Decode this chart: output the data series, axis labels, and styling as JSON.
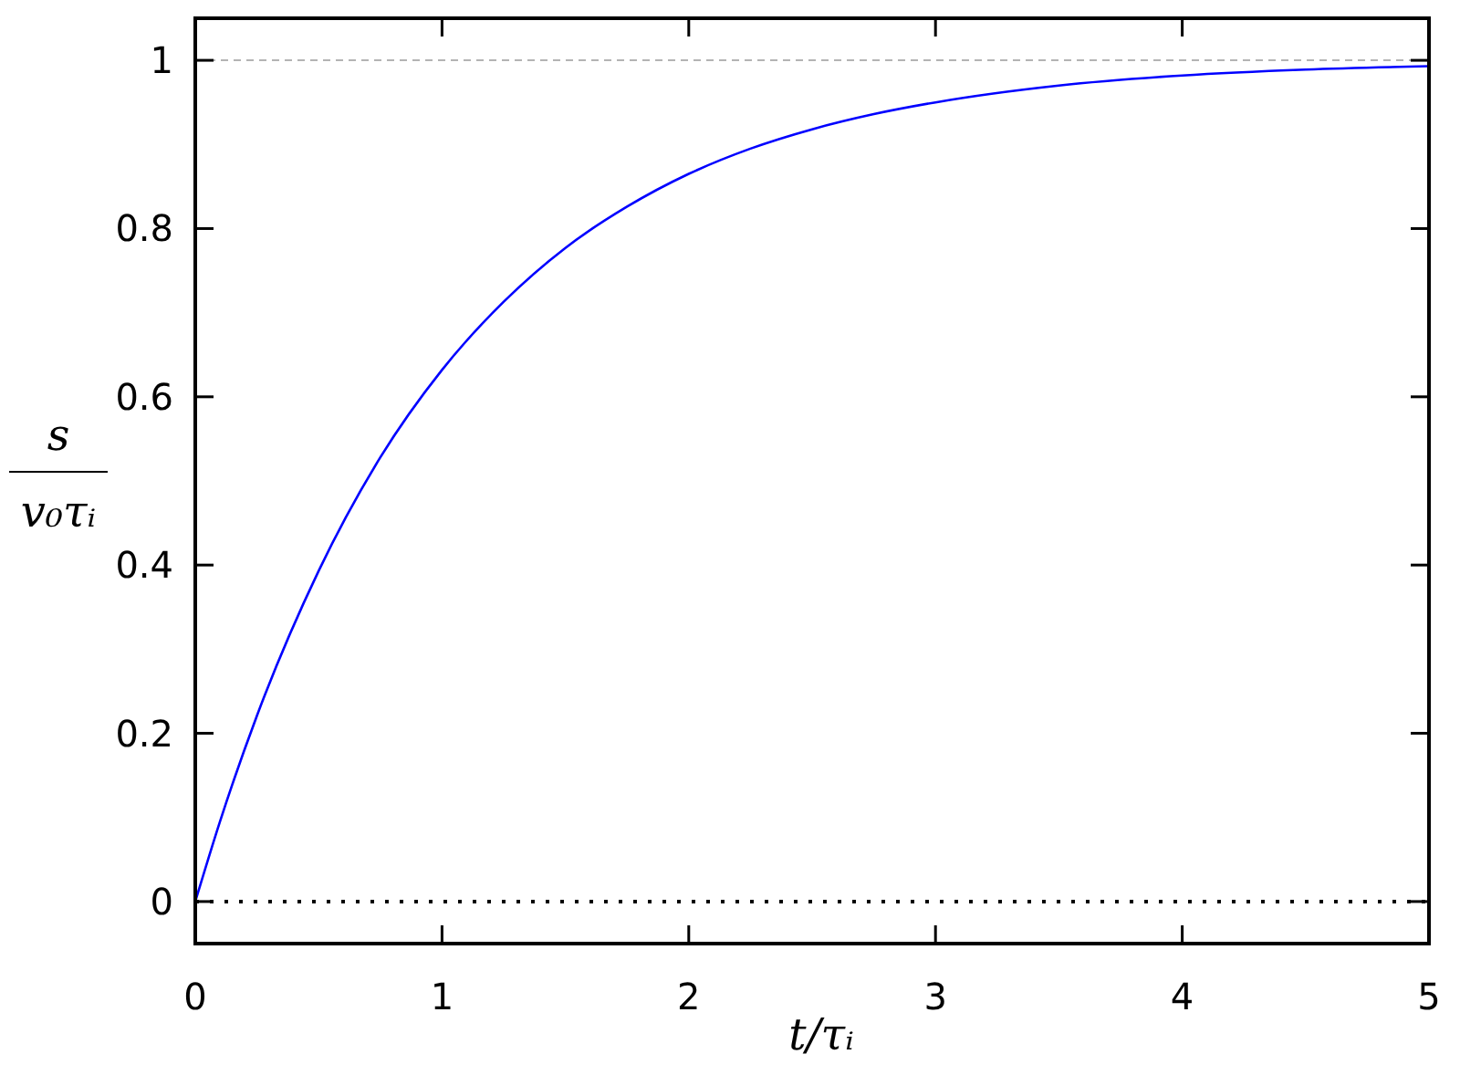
{
  "chart_data": {
    "type": "line",
    "xlabel": "t/τᵢ",
    "ylabel": "s/v₀τᵢ",
    "x": [
      0,
      0.1,
      0.25,
      0.5,
      0.75,
      1,
      1.25,
      1.5,
      1.75,
      2,
      2.25,
      2.5,
      2.75,
      3,
      3.5,
      4,
      4.5,
      5
    ],
    "series": [
      {
        "color": "#0000ff",
        "values": [
          0,
          0.095,
          0.221,
          0.393,
          0.528,
          0.632,
          0.713,
          0.777,
          0.826,
          0.865,
          0.895,
          0.918,
          0.936,
          0.95,
          0.97,
          0.982,
          0.989,
          0.993
        ]
      }
    ],
    "xlim": [
      0,
      5
    ],
    "xticks": [
      0,
      1,
      2,
      3,
      4,
      5
    ],
    "ylim": [
      -0.05,
      1.05
    ],
    "yticks": [
      0,
      0.2,
      0.4,
      0.6,
      0.8,
      1
    ],
    "ref_lines": [
      {
        "axis": "y",
        "value": 1,
        "color": "#b4b4b4",
        "line_style": "dashed"
      },
      {
        "axis": "y",
        "value": 0,
        "color": "#000000",
        "line_style": "dotted"
      }
    ],
    "marker": "none",
    "line_style": "solid"
  }
}
